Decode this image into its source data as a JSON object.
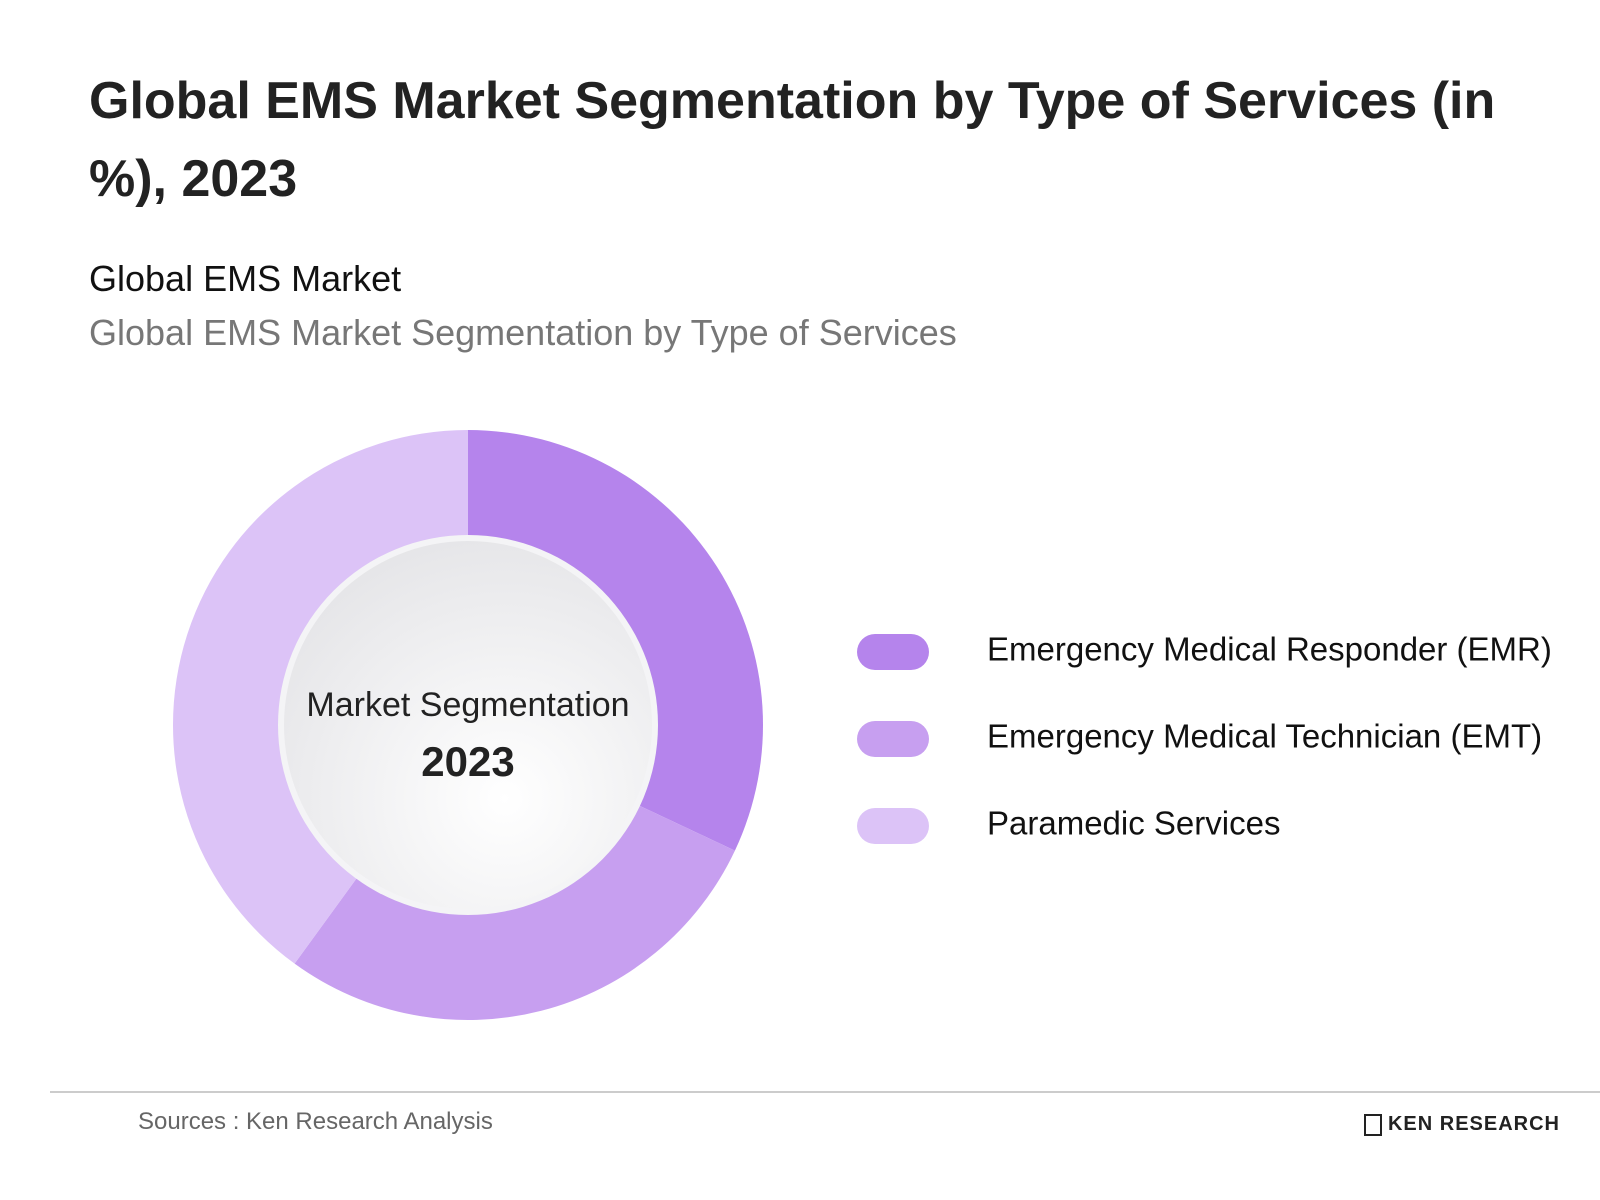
{
  "chart_data": {
    "type": "donut",
    "title": "Global EMS Market Segmentation by Type of Services (in %), 2023",
    "subtitle": "Global EMS Market",
    "description": "Global EMS Market Segmentation by Type of Services",
    "center_label": "Market Segmentation",
    "center_year": "2023",
    "categories": [
      "Emergency Medical Responder (EMR)",
      "Emergency Medical Technician (EMT)",
      "Paramedic Services"
    ],
    "values": [
      32,
      28,
      40
    ],
    "colors": [
      "#b584ec",
      "#c79ff0",
      "#dcc3f7"
    ],
    "legend": "right"
  },
  "footer": {
    "source": "Sources : Ken Research Analysis",
    "brand": "KEN RESEARCH"
  }
}
